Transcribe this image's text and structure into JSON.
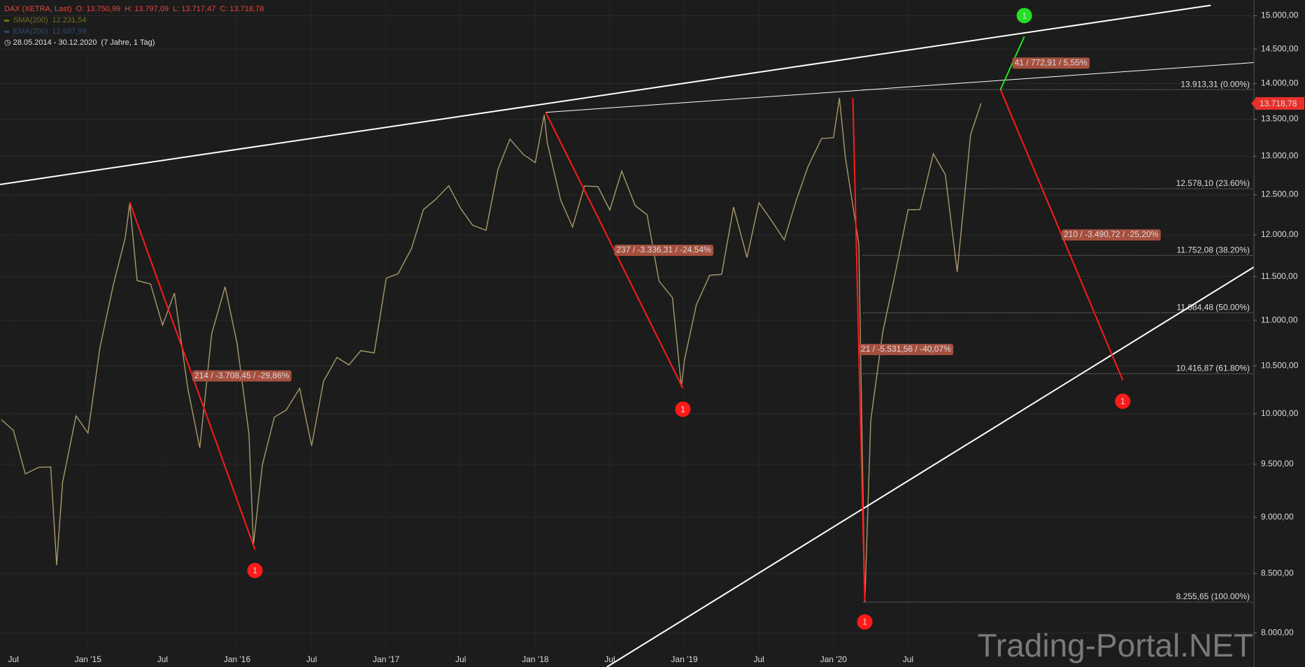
{
  "header": {
    "instrument": "DAX (XETRA, Last)",
    "ohlc": [
      "O: 13.750,99",
      "H: 13.797,09",
      "L: 13.717,47",
      "C: 13.718,78"
    ],
    "indicators": [
      {
        "name": "SMA(200)",
        "value": "12.231,54",
        "color": "#6f6f1e"
      },
      {
        "name": "EMA(200)",
        "value": "12.687,99",
        "color": "#2c4d6e"
      }
    ],
    "range": "28.05.2014 - 30.12.2020",
    "period": "(7 Jahre, 1 Tag)"
  },
  "watermark": "Trading-Portal.NET",
  "chart_data": {
    "type": "line",
    "x": [
      2014.42,
      2014.5,
      2014.58,
      2014.67,
      2014.75,
      2014.79,
      2014.83,
      2014.92,
      2015.0,
      2015.08,
      2015.17,
      2015.25,
      2015.28,
      2015.33,
      2015.42,
      2015.5,
      2015.58,
      2015.67,
      2015.75,
      2015.83,
      2015.92,
      2016.0,
      2016.08,
      2016.11,
      2016.17,
      2016.25,
      2016.33,
      2016.42,
      2016.5,
      2016.58,
      2016.67,
      2016.75,
      2016.83,
      2016.92,
      2017.0,
      2017.08,
      2017.17,
      2017.25,
      2017.33,
      2017.42,
      2017.5,
      2017.58,
      2017.67,
      2017.75,
      2017.83,
      2017.92,
      2018.0,
      2018.06,
      2018.08,
      2018.17,
      2018.25,
      2018.33,
      2018.42,
      2018.5,
      2018.58,
      2018.67,
      2018.75,
      2018.83,
      2018.92,
      2018.98,
      2019.0,
      2019.08,
      2019.17,
      2019.25,
      2019.33,
      2019.42,
      2019.5,
      2019.58,
      2019.67,
      2019.75,
      2019.83,
      2019.92,
      2020.0,
      2020.04,
      2020.08,
      2020.17,
      2020.21,
      2020.25,
      2020.33,
      2020.42,
      2020.5,
      2020.58,
      2020.67,
      2020.75,
      2020.83,
      2020.92,
      2020.99
    ],
    "series": [
      {
        "name": "DAX",
        "color": "#a89a6a",
        "values": [
          9940,
          9833,
          9407,
          9470,
          9474,
          8572,
          9326,
          9980,
          9806,
          10694,
          11402,
          11966,
          12390,
          11454,
          11414,
          10945,
          11309,
          10259,
          9660,
          10850,
          11382,
          10743,
          9798,
          8753,
          9495,
          9966,
          10039,
          10263,
          9680,
          10337,
          10592,
          10511,
          10665,
          10640,
          11481,
          11535,
          11834,
          12313,
          12438,
          12615,
          12325,
          12118,
          12056,
          12829,
          13230,
          13024,
          12918,
          13560,
          13189,
          12436,
          12097,
          12612,
          12605,
          12306,
          12806,
          12364,
          12247,
          11448,
          11257,
          10280,
          10559,
          11173,
          11516,
          11526,
          12344,
          11727,
          12399,
          12189,
          11939,
          12428,
          12867,
          13236,
          13249,
          13795,
          12982,
          11890,
          8255.65,
          9936,
          10862,
          11587,
          12311,
          12313,
          13033,
          12761,
          11556,
          13291,
          13718.78
        ]
      }
    ],
    "xlim": [
      2014.41,
      2022.82
    ],
    "xticks": [
      {
        "value": 2014.5,
        "label": "Jul"
      },
      {
        "value": 2015,
        "label": "Jan '15"
      },
      {
        "value": 2015.5,
        "label": "Jul"
      },
      {
        "value": 2016,
        "label": "Jan '16"
      },
      {
        "value": 2016.5,
        "label": "Jul"
      },
      {
        "value": 2017,
        "label": "Jan '17"
      },
      {
        "value": 2017.5,
        "label": "Jul"
      },
      {
        "value": 2018,
        "label": "Jan '18"
      },
      {
        "value": 2018.5,
        "label": "Jul"
      },
      {
        "value": 2019,
        "label": "Jan '19"
      },
      {
        "value": 2019.5,
        "label": "Jul"
      },
      {
        "value": 2020,
        "label": "Jan '20"
      },
      {
        "value": 2020.5,
        "label": "Jul"
      }
    ],
    "ylim": [
      7727,
      15243
    ],
    "ylog": true,
    "grid": true,
    "yticks": [
      {
        "value": 8000,
        "label": "8.000,00"
      },
      {
        "value": 8500,
        "label": "8.500,00"
      },
      {
        "value": 9000,
        "label": "9.000,00"
      },
      {
        "value": 9500,
        "label": "9.500,00"
      },
      {
        "value": 10000,
        "label": "10.000,00"
      },
      {
        "value": 10500,
        "label": "10.500,00"
      },
      {
        "value": 11000,
        "label": "11.000,00"
      },
      {
        "value": 11500,
        "label": "11.500,00"
      },
      {
        "value": 12000,
        "label": "12.000,00"
      },
      {
        "value": 12500,
        "label": "12.500,00"
      },
      {
        "value": 13000,
        "label": "13.000,00"
      },
      {
        "value": 13500,
        "label": "13.500,00"
      },
      {
        "value": 14000,
        "label": "14.000,00"
      },
      {
        "value": 14500,
        "label": "14.500,00"
      },
      {
        "value": 15000,
        "label": "15.000,00"
      }
    ],
    "trendlines": [
      {
        "from": [
          2014.41,
          12632
        ],
        "to": [
          2022.53,
          15160
        ],
        "color": "#ffffff",
        "width": 2
      },
      {
        "from": [
          2018.48,
          7727
        ],
        "to": [
          2022.82,
          11613
        ],
        "color": "#ffffff",
        "width": 2
      },
      {
        "from": [
          2018.07,
          13594
        ],
        "to": [
          2022.82,
          14302
        ],
        "color": "#ffffff",
        "width": 1
      }
    ],
    "annotations": [
      {
        "from": [
          2015.28,
          12405
        ],
        "to": [
          2016.12,
          8709
        ],
        "label": "214 / -3.708,45 / -29,86%",
        "marker": "1",
        "color": "#ff1a1a"
      },
      {
        "from": [
          2018.07,
          13594
        ],
        "to": [
          2018.99,
          10264
        ],
        "label": "237 / -3.336,31 / -24,54%",
        "marker": "1",
        "color": "#ff1a1a"
      },
      {
        "from": [
          2020.13,
          13794
        ],
        "to": [
          2020.21,
          8265
        ],
        "label": "21 / -5.531,56 / -40,07%",
        "marker": "1",
        "color": "#ff1a1a"
      },
      {
        "from": [
          2021.12,
          13913
        ],
        "to": [
          2021.94,
          10348
        ],
        "label": "210 / -3.490,72 / -25,20%",
        "marker": "1",
        "color": "#ff1a1a"
      },
      {
        "from": [
          2021.12,
          13913
        ],
        "to": [
          2021.28,
          14686
        ],
        "label": "41 / 772,91 / 5,55%",
        "marker": "1",
        "color": "#22e022"
      }
    ],
    "fibonacci": {
      "from": 2020.2,
      "levels": [
        {
          "value": 13913.31,
          "label": "13.913,31 (0.00%)"
        },
        {
          "value": 12578.1,
          "label": "12.578,10 (23.60%)"
        },
        {
          "value": 11752.08,
          "label": "11.752,08 (38.20%)"
        },
        {
          "value": 11084.48,
          "label": "11.084,48 (50.00%)"
        },
        {
          "value": 10416.87,
          "label": "10.416,87 (61.80%)"
        },
        {
          "value": 8255.65,
          "label": "8.255,65 (100.00%)"
        }
      ]
    },
    "last_price": {
      "value": 13718.78,
      "label": "13.718,78",
      "color": "#e8302a"
    }
  }
}
